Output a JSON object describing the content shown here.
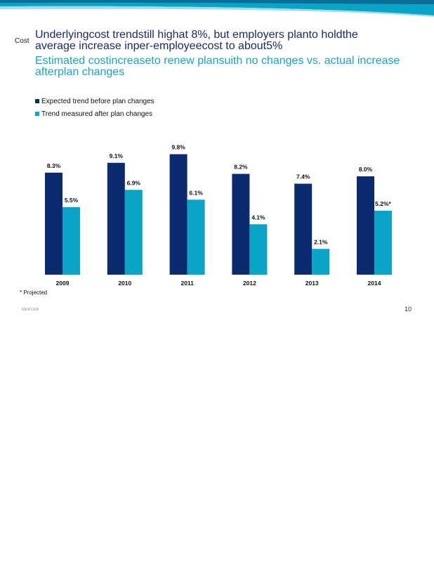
{
  "page": {
    "side_label": "Cost",
    "headline": "Underlyingcost trendstill highat 8%, but employers planto holdthe average increase inper-employeecost to about5%",
    "subhead": "Estimated costincreaseto renew plansuith no changes vs. actual increase afterplan changes",
    "footnote": "* Projected",
    "brand": "MERCER",
    "page_number": "10"
  },
  "colors": {
    "dark": "#0b2a6f",
    "light": "#0aa4c6",
    "headline": "#1a2a6c",
    "subhead": "#1aa3c8"
  },
  "chart_data": {
    "type": "bar",
    "categories": [
      "2009",
      "2010",
      "2011",
      "2012",
      "2013",
      "2014"
    ],
    "series": [
      {
        "name": "Expected trend before plan changes",
        "values": [
          8.3,
          9.1,
          9.8,
          8.2,
          7.4,
          8.0
        ],
        "labels": [
          "8.3%",
          "9.1%",
          "9.8%",
          "8.2%",
          "7.4%",
          "8.0%"
        ]
      },
      {
        "name": "Trend measured after plan changes",
        "values": [
          5.5,
          6.9,
          6.1,
          4.1,
          2.1,
          5.2
        ],
        "labels": [
          "5.5%",
          "6.9%",
          "6.1%",
          "4.1%",
          "2.1%",
          "5.2%*"
        ]
      }
    ],
    "legend_position": "top-left",
    "grid": false,
    "ylim": [
      0,
      9.8
    ]
  }
}
